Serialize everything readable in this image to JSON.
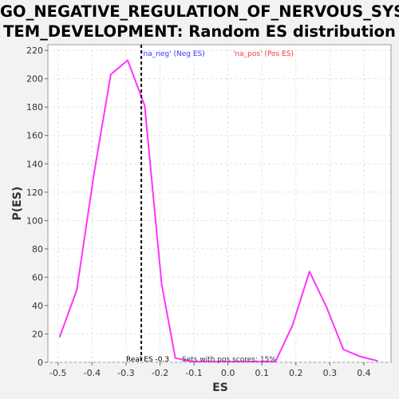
{
  "chart_data": {
    "type": "line",
    "title_lines": [
      "GO_NEGATIVE_REGULATION_OF_NERVOUS_SYS",
      "TEM_DEVELOPMENT: Random ES distribution"
    ],
    "xlabel": "ES",
    "ylabel": "P(ES)",
    "xlim": [
      -0.53,
      0.48
    ],
    "ylim": [
      0,
      224
    ],
    "x_ticks": [
      "-0.5",
      "-0.4",
      "-0.3",
      "-0.2",
      "-0.1",
      "0.0",
      "0.1",
      "0.2",
      "0.3",
      "0.4"
    ],
    "y_ticks": [
      "0",
      "20",
      "40",
      "60",
      "80",
      "100",
      "120",
      "140",
      "160",
      "180",
      "200",
      "220"
    ],
    "grid": true,
    "series": [
      {
        "color": "#ff33ff",
        "x": [
          -0.495,
          -0.445,
          -0.395,
          -0.345,
          -0.295,
          -0.245,
          -0.195,
          -0.155,
          -0.105,
          -0.055,
          0.0,
          0.04,
          0.09,
          0.14,
          0.19,
          0.24,
          0.29,
          0.34,
          0.39,
          0.44
        ],
        "y": [
          18,
          51,
          132,
          203,
          213,
          181,
          55,
          3,
          0.5,
          0.5,
          0.5,
          0.5,
          0.5,
          0.5,
          26,
          64,
          39,
          9,
          4,
          1
        ]
      }
    ],
    "real_es": {
      "x": -0.255,
      "label": "Real ES -0.3"
    },
    "annotations": {
      "neg": {
        "text": "'na_neg' (Neg ES)",
        "color": "#3333ff"
      },
      "pos": {
        "text": "'na_pos' (Pos ES)",
        "color": "#ff3333"
      },
      "sets": {
        "text": "Sets with pos scores: 15%",
        "color": "#333333"
      }
    }
  }
}
